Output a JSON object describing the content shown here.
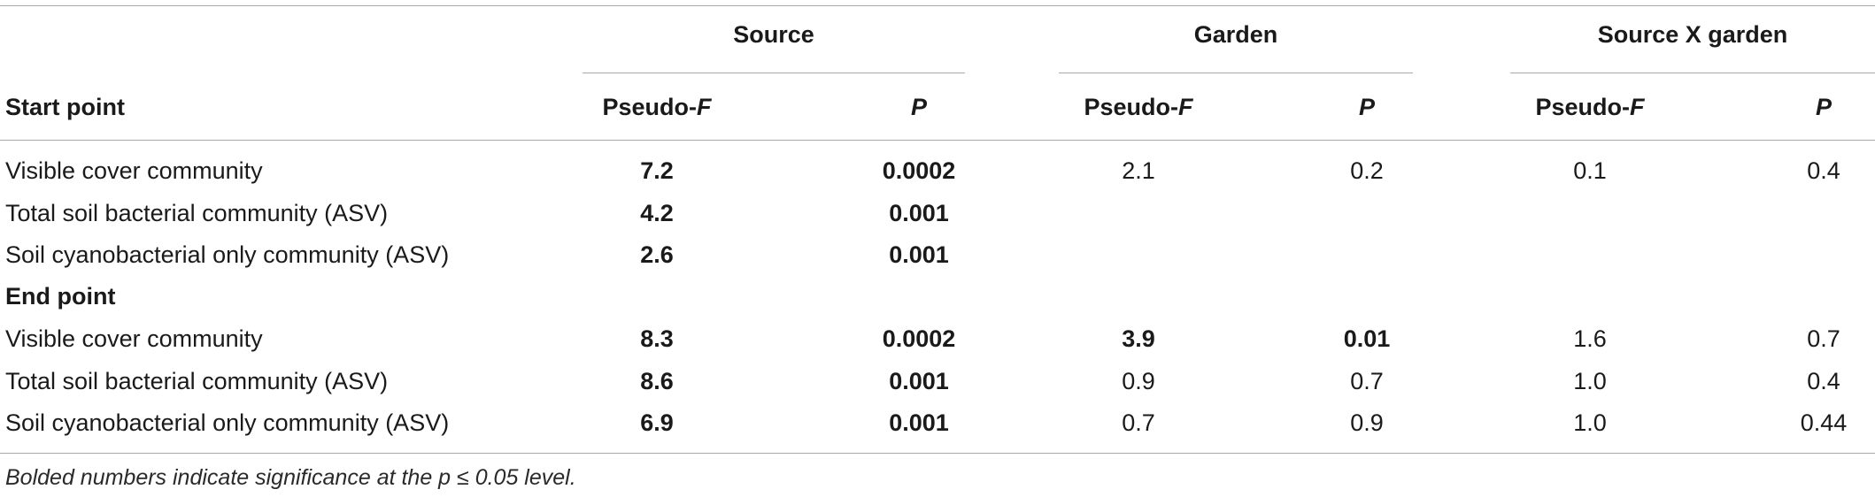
{
  "table": {
    "group_headers": [
      "Source",
      "Garden",
      "Source X garden"
    ],
    "stub_header": "Start point",
    "sub_headers": [
      {
        "text": "Pseudo-",
        "italic": "F"
      },
      {
        "text": "",
        "italic": "P"
      },
      {
        "text": "Pseudo-",
        "italic": "F"
      },
      {
        "text": "",
        "italic": "P"
      },
      {
        "text": "Pseudo-",
        "italic": "F"
      },
      {
        "text": "",
        "italic": "P"
      }
    ],
    "rows": [
      {
        "label": "Visible cover community",
        "cells": [
          {
            "v": "7.2",
            "b": true
          },
          {
            "v": "0.0002",
            "b": true
          },
          {
            "v": "2.1",
            "b": false
          },
          {
            "v": "0.2",
            "b": false
          },
          {
            "v": "0.1",
            "b": false
          },
          {
            "v": "0.4",
            "b": false
          }
        ]
      },
      {
        "label": "Total soil bacterial community (ASV)",
        "cells": [
          {
            "v": "4.2",
            "b": true
          },
          {
            "v": "0.001",
            "b": true
          },
          {
            "v": "",
            "b": false
          },
          {
            "v": "",
            "b": false
          },
          {
            "v": "",
            "b": false
          },
          {
            "v": "",
            "b": false
          }
        ]
      },
      {
        "label": "Soil cyanobacterial only community (ASV)",
        "cells": [
          {
            "v": "2.6",
            "b": true
          },
          {
            "v": "0.001",
            "b": true
          },
          {
            "v": "",
            "b": false
          },
          {
            "v": "",
            "b": false
          },
          {
            "v": "",
            "b": false
          },
          {
            "v": "",
            "b": false
          }
        ]
      },
      {
        "label": "End point",
        "section": true,
        "cells": []
      },
      {
        "label": "Visible cover community",
        "cells": [
          {
            "v": "8.3",
            "b": true
          },
          {
            "v": "0.0002",
            "b": true
          },
          {
            "v": "3.9",
            "b": true
          },
          {
            "v": "0.01",
            "b": true
          },
          {
            "v": "1.6",
            "b": false
          },
          {
            "v": "0.7",
            "b": false
          }
        ]
      },
      {
        "label": "Total soil bacterial community (ASV)",
        "cells": [
          {
            "v": "8.6",
            "b": true
          },
          {
            "v": "0.001",
            "b": true
          },
          {
            "v": "0.9",
            "b": false
          },
          {
            "v": "0.7",
            "b": false
          },
          {
            "v": "1.0",
            "b": false
          },
          {
            "v": "0.4",
            "b": false
          }
        ]
      },
      {
        "label": "Soil cyanobacterial only community (ASV)",
        "cells": [
          {
            "v": "6.9",
            "b": true
          },
          {
            "v": "0.001",
            "b": true
          },
          {
            "v": "0.7",
            "b": false
          },
          {
            "v": "0.9",
            "b": false
          },
          {
            "v": "1.0",
            "b": false
          },
          {
            "v": "0.44",
            "b": false
          }
        ]
      }
    ],
    "footnote": "Bolded numbers indicate significance at the p ≤ 0.05 level."
  }
}
